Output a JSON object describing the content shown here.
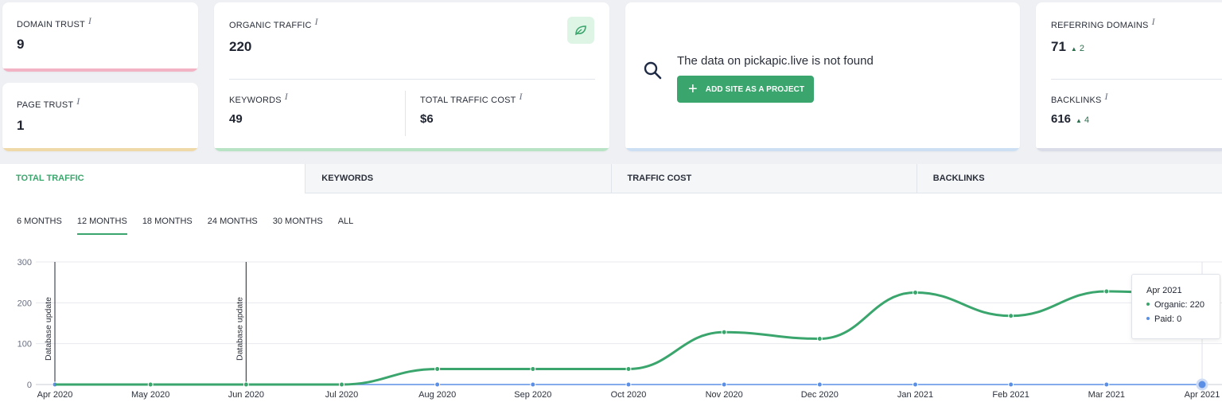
{
  "metrics": {
    "domain_trust": {
      "label": "DOMAIN TRUST",
      "value": "9",
      "color": "#f2b3c5"
    },
    "page_trust": {
      "label": "PAGE TRUST",
      "value": "1",
      "color": "#efd9a8"
    },
    "organic_traffic": {
      "label": "ORGANIC TRAFFIC",
      "value": "220",
      "color": "#b9e3c5"
    },
    "keywords": {
      "label": "KEYWORDS",
      "value": "49"
    },
    "total_traffic_cost": {
      "label": "TOTAL TRAFFIC COST",
      "value": "$6"
    },
    "referring_domains": {
      "label": "REFERRING DOMAINS",
      "value": "71",
      "delta": "2"
    },
    "backlinks": {
      "label": "BACKLINKS",
      "value": "616",
      "delta": "4"
    },
    "info_mark": "i"
  },
  "not_found": {
    "message": "The data on pickapic.live is not found",
    "button_label": "ADD SITE AS A PROJECT",
    "accent": "#cddff3"
  },
  "tabs": [
    "TOTAL TRAFFIC",
    "KEYWORDS",
    "TRAFFIC COST",
    "BACKLINKS"
  ],
  "periods": [
    "6 MONTHS",
    "12 MONTHS",
    "18 MONTHS",
    "24 MONTHS",
    "30 MONTHS",
    "ALL"
  ],
  "active_period": "12 MONTHS",
  "tooltip": {
    "title": "Apr 2021",
    "organic_label": "Organic:",
    "organic_value": "220",
    "paid_label": "Paid:",
    "paid_value": "0"
  },
  "colors": {
    "accent": "#3aa56c",
    "organic": "#3aa56c",
    "paid": "#5b8fe6"
  },
  "chart_data": {
    "type": "line",
    "categories": [
      "Apr 2020",
      "May 2020",
      "Jun 2020",
      "Jul 2020",
      "Aug 2020",
      "Sep 2020",
      "Oct 2020",
      "Nov 2020",
      "Dec 2020",
      "Jan 2021",
      "Feb 2021",
      "Mar 2021",
      "Apr 2021"
    ],
    "series": [
      {
        "name": "Organic",
        "values": [
          0,
          0,
          0,
          0,
          38,
          38,
          38,
          128,
          112,
          225,
          168,
          228,
          220
        ]
      },
      {
        "name": "Paid",
        "values": [
          0,
          0,
          0,
          0,
          0,
          0,
          0,
          0,
          0,
          0,
          0,
          0,
          0
        ]
      }
    ],
    "ylim": [
      0,
      300
    ],
    "yticks": [
      0,
      100,
      200,
      300
    ],
    "annotations": [
      {
        "x": "Apr 2020",
        "label": "Database update"
      },
      {
        "x": "Jun 2020",
        "label": "Database update"
      }
    ],
    "grid": true
  }
}
